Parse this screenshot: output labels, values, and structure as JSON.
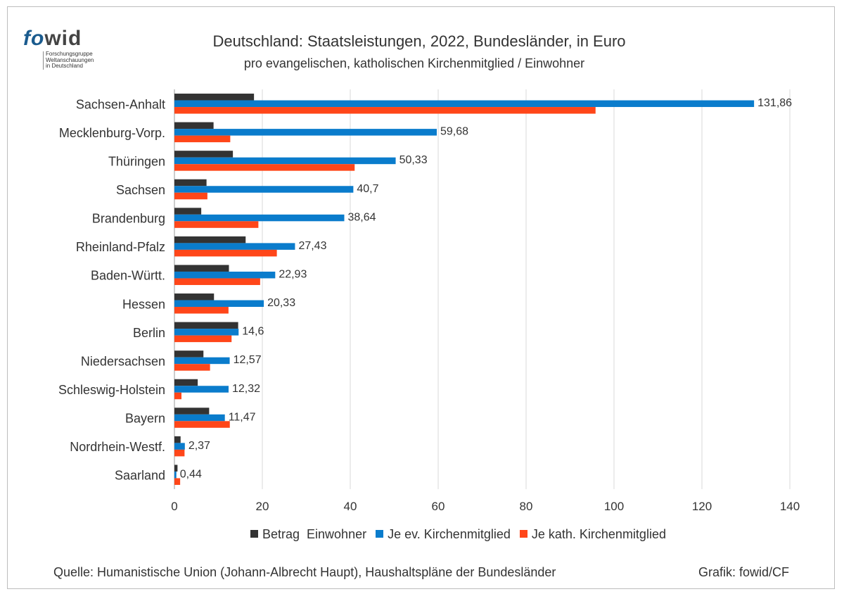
{
  "logo": {
    "mark_left": "fo",
    "mark_right": "wid",
    "line1": "Forschungsgruppe",
    "line2": "Weltanschauungen",
    "line3": "in Deutschland"
  },
  "title": "Deutschland: Staatsleistungen, 2022, Bundesländer, in Euro",
  "subtitle": "pro evangelischen, katholischen Kirchenmitglied / Einwohner",
  "source": "Quelle: Humanistische Union (Johann-Albrecht Haupt), Haushaltspläne der Bundesländer",
  "credit": "Grafik: fowid/CF",
  "chart_data": {
    "type": "bar",
    "orientation": "horizontal",
    "categories": [
      "Sachsen-Anhalt",
      "Mecklenburg-Vorp.",
      "Thüringen",
      "Sachsen",
      "Brandenburg",
      "Rheinland-Pfalz",
      "Baden-Württ.",
      "Hessen",
      "Berlin",
      "Niedersachsen",
      "Schleswig-Holstein",
      "Bayern",
      "Nordrhein-Westf.",
      "Saarland"
    ],
    "series": [
      {
        "name": "Betrag  Einwohner",
        "color": "#333333",
        "values": [
          18.1,
          8.9,
          13.3,
          7.3,
          6.1,
          16.2,
          12.4,
          9.0,
          14.5,
          6.6,
          5.3,
          7.9,
          1.4,
          0.7
        ]
      },
      {
        "name": "Je ev. Kirchenmitglied",
        "color": "#0a7ccc",
        "values": [
          131.86,
          59.68,
          50.33,
          40.7,
          38.64,
          27.43,
          22.93,
          20.33,
          14.6,
          12.57,
          12.32,
          11.47,
          2.37,
          0.44
        ],
        "labels": [
          "131,86",
          "59,68",
          "50,33",
          "40,7",
          "38,64",
          "27,43",
          "22,93",
          "20,33",
          "14,6",
          "12,57",
          "12,32",
          "11,47",
          "2,37",
          "0,44"
        ]
      },
      {
        "name": "Je kath. Kirchenmitglied",
        "color": "#ff4619",
        "values": [
          95.8,
          12.7,
          41.0,
          7.5,
          19.1,
          23.3,
          19.5,
          12.3,
          13.0,
          8.1,
          1.6,
          12.6,
          2.3,
          1.3
        ]
      }
    ],
    "xlim": [
      0,
      140
    ],
    "xticks": [
      "0",
      "20",
      "40",
      "60",
      "80",
      "100",
      "120",
      "140"
    ],
    "grid": true,
    "legend_position": "bottom"
  }
}
